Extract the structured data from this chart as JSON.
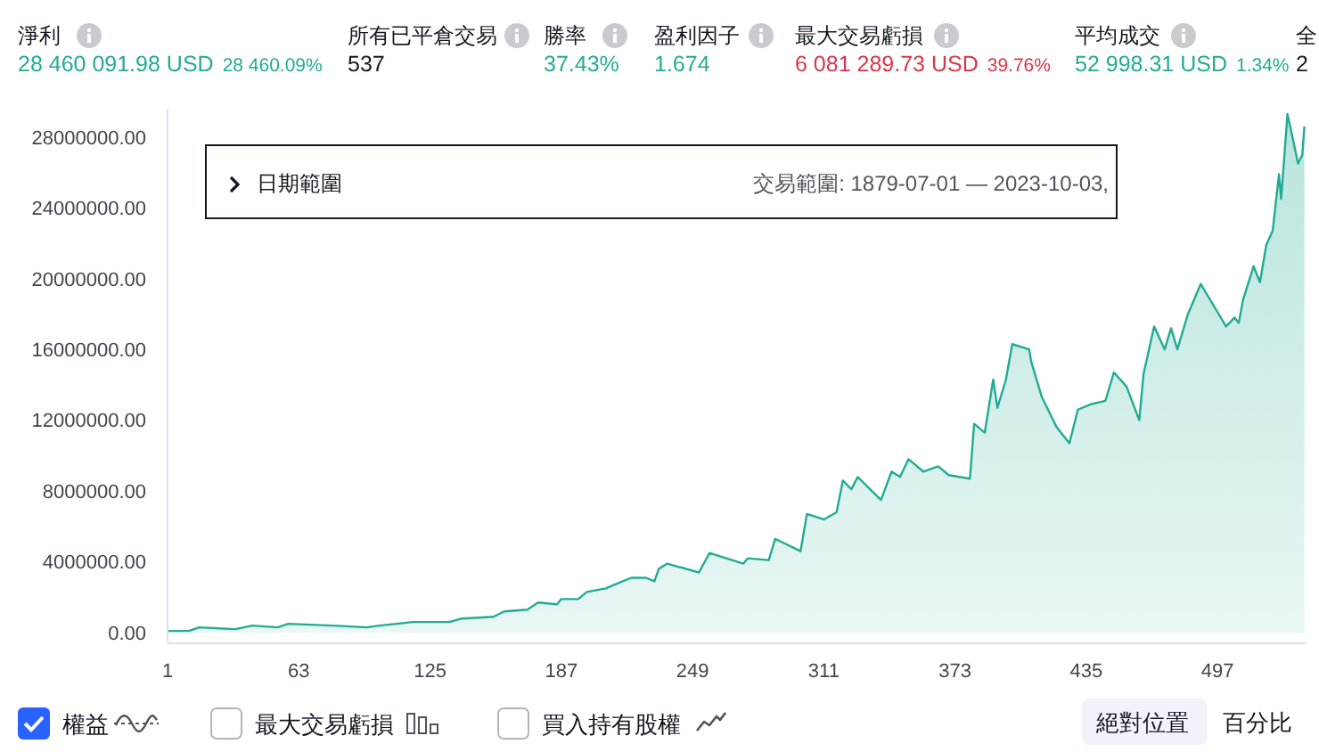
{
  "chart_data": {
    "type": "area",
    "x": [
      1,
      11,
      16,
      33,
      41,
      53,
      58,
      79,
      95,
      101,
      117,
      134,
      140,
      155,
      160,
      171,
      176,
      185,
      187,
      195,
      199,
      208,
      214,
      220,
      227,
      231,
      233,
      237,
      252,
      257,
      273,
      275,
      285,
      288,
      300,
      303,
      311,
      317,
      320,
      324,
      327,
      332,
      338,
      343,
      347,
      351,
      358,
      365,
      370,
      380,
      382,
      387,
      391,
      393,
      397,
      400,
      408,
      409,
      414,
      421,
      427,
      431,
      437,
      444,
      448,
      454,
      460,
      462,
      467,
      472,
      475,
      478,
      483,
      489,
      496,
      501,
      505,
      507,
      509,
      514,
      517,
      520,
      523,
      526,
      527,
      530,
      532,
      535,
      537,
      538
    ],
    "series": [
      {
        "name": "權益",
        "color": "#22ab94",
        "values": [
          100000,
          100000,
          300000,
          200000,
          400000,
          300000,
          500000,
          400000,
          300000,
          400000,
          600000,
          600000,
          800000,
          900000,
          1200000,
          1300000,
          1700000,
          1600000,
          1900000,
          1900000,
          2300000,
          2500000,
          2800000,
          3100000,
          3100000,
          2900000,
          3600000,
          3900000,
          3400000,
          4500000,
          3900000,
          4200000,
          4100000,
          5300000,
          4600000,
          6700000,
          6400000,
          6800000,
          8600000,
          8100000,
          8800000,
          8200000,
          7500000,
          9100000,
          8800000,
          9800000,
          9100000,
          9400000,
          8900000,
          8700000,
          11800000,
          11300000,
          14300000,
          12700000,
          14300000,
          16300000,
          16000000,
          15300000,
          13300000,
          11600000,
          10700000,
          12600000,
          12900000,
          13100000,
          14700000,
          13900000,
          12000000,
          14600000,
          17300000,
          16000000,
          17200000,
          16000000,
          18000000,
          19700000,
          18300000,
          17300000,
          17800000,
          17500000,
          18800000,
          20700000,
          19800000,
          21900000,
          22700000,
          25900000,
          24500000,
          29300000,
          28200000,
          26500000,
          27000000,
          28600000
        ]
      }
    ],
    "xlim": [
      1,
      539
    ],
    "xticks": [
      1,
      63,
      125,
      187,
      249,
      311,
      373,
      435,
      497
    ],
    "ylim": [
      -600000,
      29600000
    ],
    "yticks": [
      {
        "value": 0,
        "label": "0.00"
      },
      {
        "value": 4000000,
        "label": "4000000.00"
      },
      {
        "value": 8000000,
        "label": "8000000.00"
      },
      {
        "value": 12000000,
        "label": "12000000.00"
      },
      {
        "value": 16000000,
        "label": "16000000.00"
      },
      {
        "value": 20000000,
        "label": "20000000.00"
      },
      {
        "value": 24000000,
        "label": "24000000.00"
      },
      {
        "value": 28000000,
        "label": "28000000.00"
      }
    ],
    "legend": "bottom left",
    "annotations": [
      "淨利",
      "28 460 091.98 USD",
      "28 460.09%",
      "所有已平倉交易",
      "537",
      "勝率",
      "37.43%",
      "盈利因子",
      "1.674",
      "最大交易虧損",
      "6 081 289.73 USD",
      "39.76%",
      "平均成交",
      "52 998.31 USD",
      "1.34%",
      "全",
      "2",
      "日期範圍",
      "交易範圍: 1879-07-01 — 2023-10-03,",
      "最大交易虧損",
      "買入持有股權",
      "絕對位置",
      "百分比"
    ]
  }
}
